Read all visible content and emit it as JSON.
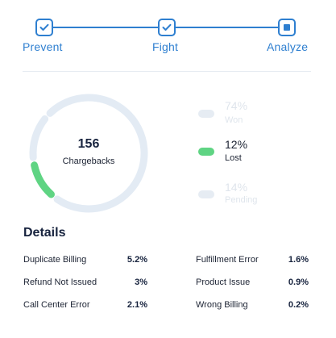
{
  "stepper": {
    "steps": [
      {
        "label": "Prevent",
        "state": "done"
      },
      {
        "label": "Fight",
        "state": "done"
      },
      {
        "label": "Analyze",
        "state": "current"
      }
    ],
    "accent_color": "#2e7fd0"
  },
  "summary": {
    "total": "156",
    "total_label": "Chargebacks",
    "segments": [
      {
        "label": "Won",
        "percent": "74%",
        "value": 74,
        "color": "#e3ebf4",
        "highlighted": false
      },
      {
        "label": "Lost",
        "percent": "12%",
        "value": 12,
        "color": "#5fd483",
        "highlighted": true
      },
      {
        "label": "Pending",
        "percent": "14%",
        "value": 14,
        "color": "#e3ebf4",
        "highlighted": false
      }
    ]
  },
  "details": {
    "title": "Details",
    "rows": [
      {
        "label": "Duplicate Billing",
        "value": "5.2%"
      },
      {
        "label": "Fulfillment Error",
        "value": "1.6%"
      },
      {
        "label": "Refund Not Issued",
        "value": "3%"
      },
      {
        "label": "Product Issue",
        "value": "0.9%"
      },
      {
        "label": "Call Center Error",
        "value": "2.1%"
      },
      {
        "label": "Wrong Billing",
        "value": "0.2%"
      }
    ]
  }
}
